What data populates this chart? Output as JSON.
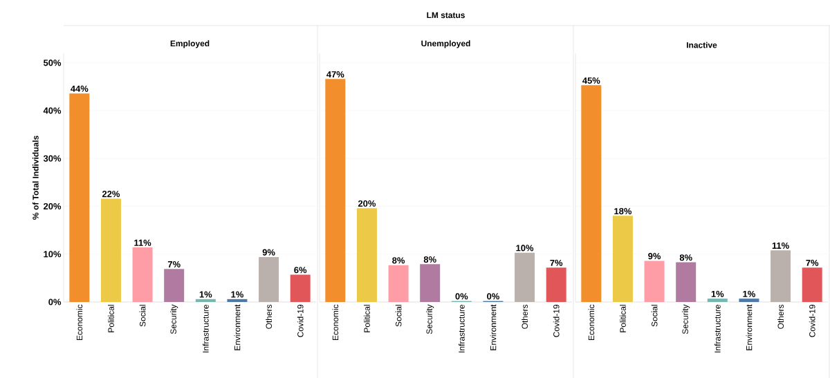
{
  "chart_data": [
    {
      "type": "bar",
      "title": "Employed",
      "ylabel": "% of Total Individuals",
      "categories": [
        "Economic",
        "Political",
        "Social",
        "Security",
        "Infrastructure",
        "Environment",
        "Others",
        "Covid-19"
      ],
      "values": [
        43.6,
        21.6,
        11.4,
        6.9,
        0.6,
        0.6,
        9.4,
        5.7
      ],
      "value_labels": [
        "44%",
        "22%",
        "11%",
        "7%",
        "1%",
        "1%",
        "9%",
        "6%"
      ],
      "colors": [
        "#f28e2b",
        "#edc948",
        "#ff9da7",
        "#b07aa1",
        "#76b7b2",
        "#4e79a7",
        "#bab0ac",
        "#e15759"
      ],
      "ylim": [
        0,
        52
      ],
      "yticks": [
        {
          "value": 0,
          "label": "0%"
        },
        {
          "value": 10,
          "label": "10%"
        },
        {
          "value": 20,
          "label": "20%"
        },
        {
          "value": 30,
          "label": "30%"
        },
        {
          "value": 40,
          "label": "40%"
        },
        {
          "value": 50,
          "label": "50%"
        }
      ],
      "grid": "y"
    },
    {
      "type": "bar",
      "title": "Unemployed",
      "annotations": [
        "LM status"
      ],
      "categories": [
        "Economic",
        "Political",
        "Social",
        "Security",
        "Infrastructure",
        "Environment",
        "Others",
        "Covid-19"
      ],
      "values": [
        46.6,
        19.6,
        7.7,
        7.9,
        0.2,
        0.2,
        10.3,
        7.2
      ],
      "value_labels": [
        "47%",
        "20%",
        "8%",
        "8%",
        "0%",
        "0%",
        "10%",
        "7%"
      ],
      "colors": [
        "#f28e2b",
        "#edc948",
        "#ff9da7",
        "#b07aa1",
        "#76b7b2",
        "#4e79a7",
        "#bab0ac",
        "#e15759"
      ],
      "ylim": [
        0,
        52
      ],
      "yticks": [
        0,
        10,
        20,
        30,
        40,
        50
      ],
      "grid": "y",
      "tick_labels": "x"
    },
    {
      "type": "bar",
      "title": "Inactive",
      "categories": [
        "Economic",
        "Political",
        "Social",
        "Security",
        "Infrastructure",
        "Environment",
        "Others",
        "Covid-19"
      ],
      "values": [
        45.3,
        18.0,
        8.6,
        8.3,
        0.7,
        0.7,
        10.8,
        7.2
      ],
      "value_labels": [
        "45%",
        "18%",
        "9%",
        "8%",
        "1%",
        "1%",
        "11%",
        "7%"
      ],
      "colors": [
        "#f28e2b",
        "#edc948",
        "#ff9da7",
        "#b07aa1",
        "#76b7b2",
        "#4e79a7",
        "#bab0ac",
        "#e15759"
      ],
      "ylim": [
        0,
        52
      ],
      "yticks": [
        0,
        10,
        20,
        30,
        40,
        50
      ],
      "grid": "y",
      "tick_labels": "x"
    }
  ]
}
